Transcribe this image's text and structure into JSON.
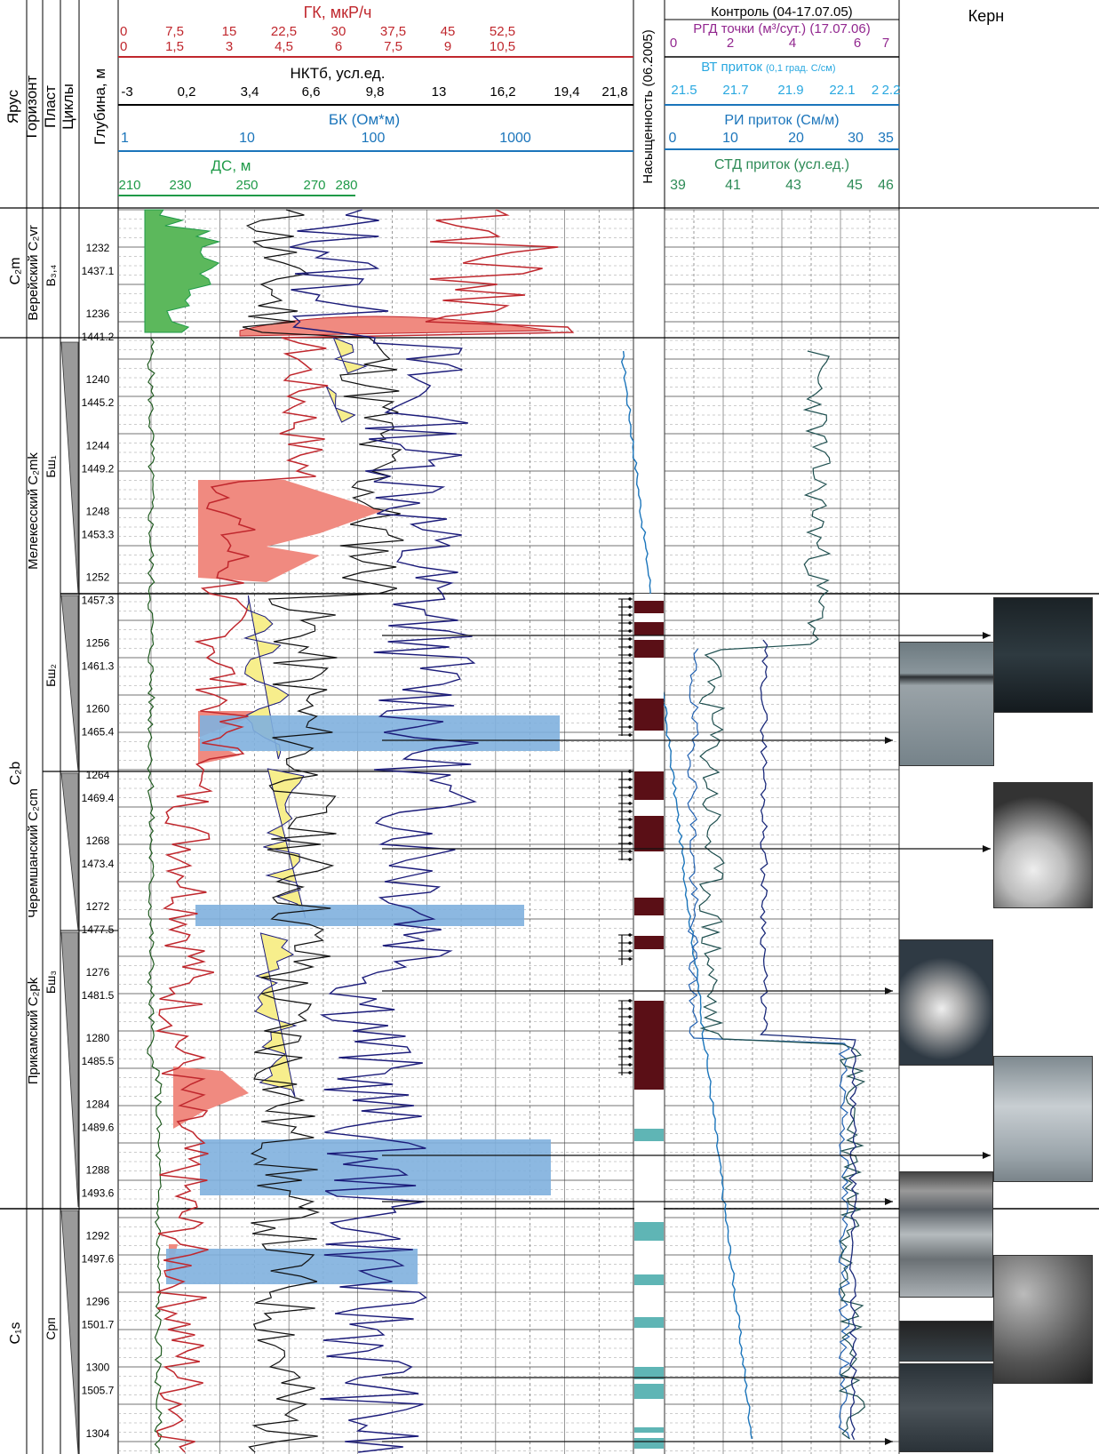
{
  "header": {
    "columns": [
      "Ярус",
      "Горизонт",
      "Пласт",
      "Циклы",
      "Глубина, м"
    ],
    "saturation_label": "Насыщенность (06.2005)",
    "core_label": "Керн"
  },
  "left_tracks": [
    {
      "name": "ГК, мкР/ч",
      "color": "#c0272d",
      "ticks_row1": [
        "0",
        "7,5",
        "15",
        "22,5",
        "30",
        "37,5",
        "45",
        "52,5"
      ],
      "ticks_row2": [
        "0",
        "1,5",
        "3",
        "4,5",
        "6",
        "7,5",
        "9",
        "10,5"
      ]
    },
    {
      "name": "НКТб, усл.ед.",
      "color": "#000000",
      "ticks": [
        "-3",
        "0,2",
        "3,4",
        "6,6",
        "9,8",
        "13",
        "16,2",
        "19,4",
        "21,8"
      ]
    },
    {
      "name": "БК (Ом*м)",
      "color": "#1b75bb",
      "ticks": [
        "1",
        "10",
        "100",
        "1000"
      ]
    },
    {
      "name": "ДС, м",
      "color": "#1f9a48",
      "ticks": [
        "210",
        "230",
        "250",
        "270",
        "280"
      ]
    }
  ],
  "right_tracks": [
    {
      "name": "Контроль (04-17.07.05)",
      "color": "#000000"
    },
    {
      "name": "РГД точки (м³/сут.) (17.07.06)",
      "color": "#92278f",
      "ticks": [
        "0",
        "2",
        "4",
        "6",
        "7"
      ]
    },
    {
      "name": "ВТ приток",
      "unit": "(0,1 град. С/см)",
      "color": "#29a8e0",
      "ticks": [
        "21.5",
        "21.7",
        "21.9",
        "22.1",
        "2",
        "2.2"
      ]
    },
    {
      "name": "РИ приток  (См/м)",
      "color": "#1b75bb",
      "ticks": [
        "0",
        "10",
        "20",
        "30",
        "35"
      ]
    },
    {
      "name": "СТД приток  (усл.ед.)",
      "color": "#2e8b57",
      "ticks": [
        "39",
        "41",
        "43",
        "45",
        "46"
      ]
    }
  ],
  "stages": [
    {
      "label": "C₂m",
      "zone": "top"
    },
    {
      "label": "C₂b",
      "zone": "mid"
    },
    {
      "label": "C₁s",
      "zone": "bottom"
    }
  ],
  "horizons": [
    "Верейский C₂vr",
    "Мелекесский C₂mk",
    "Черемшанский C₂cm",
    "Прикамский C₂pk"
  ],
  "plasts": [
    "В₃,₄",
    "Бш₁",
    "Бш₂",
    "Бш₃",
    "Срп"
  ],
  "depths": [
    [
      "1232",
      "1437.1"
    ],
    [
      "1236",
      "1441.2"
    ],
    [
      "1240",
      "1445.2"
    ],
    [
      "1244",
      "1449.2"
    ],
    [
      "1248",
      "1453.3"
    ],
    [
      "1252",
      "1457.3"
    ],
    [
      "1256",
      "1461.3"
    ],
    [
      "1260",
      "1465.4"
    ],
    [
      "1264",
      "1469.4"
    ],
    [
      "1268",
      "1473.4"
    ],
    [
      "1272",
      "1477.5"
    ],
    [
      "1276",
      "1481.5"
    ],
    [
      "1280",
      "1485.5"
    ],
    [
      "1284",
      "1489.6"
    ],
    [
      "1288",
      "1493.6"
    ],
    [
      "1292",
      "1497.6"
    ],
    [
      "1296",
      "1501.7"
    ],
    [
      "1300",
      "1505.7"
    ],
    [
      "1304",
      ""
    ]
  ],
  "colors": {
    "gk_fill": "#f08a80",
    "bk_fill": "#f7ee8c",
    "wet_fill": "#7fb0de",
    "ds_fill": "#5cb85c",
    "oil": "#5a0f16",
    "water": "#5fb5b5"
  }
}
